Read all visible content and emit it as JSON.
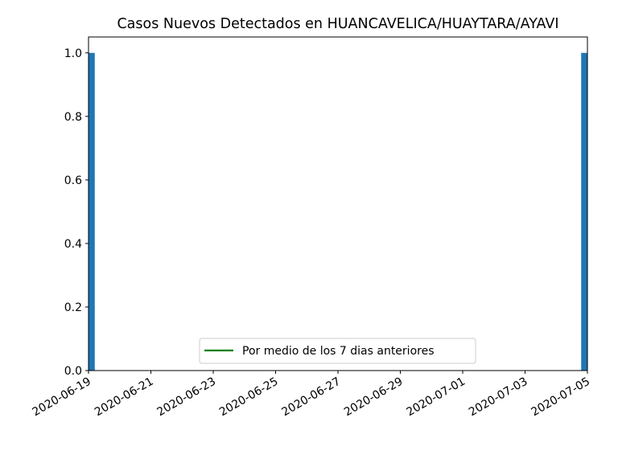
{
  "chart_data": {
    "type": "bar",
    "title": "Casos Nuevos Detectados en HUANCAVELICA/HUAYTARA/AYAVI",
    "xlabel": "",
    "ylabel": "",
    "x_start": "2020-06-19",
    "x_end": "2020-07-05",
    "x_ticks": [
      "2020-06-19",
      "2020-06-21",
      "2020-06-23",
      "2020-06-25",
      "2020-06-27",
      "2020-06-29",
      "2020-07-01",
      "2020-07-03",
      "2020-07-05"
    ],
    "ylim": [
      0,
      1.05
    ],
    "y_ticks": [
      "0.0",
      "0.2",
      "0.4",
      "0.6",
      "0.8",
      "1.0"
    ],
    "bar_color": "#1f77b4",
    "bars": [
      {
        "date": "2020-06-19",
        "value": 1
      },
      {
        "date": "2020-07-05",
        "value": 1
      }
    ],
    "series": [
      {
        "name": "Por medio de los 7 dias anteriores",
        "color": "#008000",
        "values": []
      }
    ],
    "legend": {
      "position": "lower center"
    },
    "grid": false
  }
}
